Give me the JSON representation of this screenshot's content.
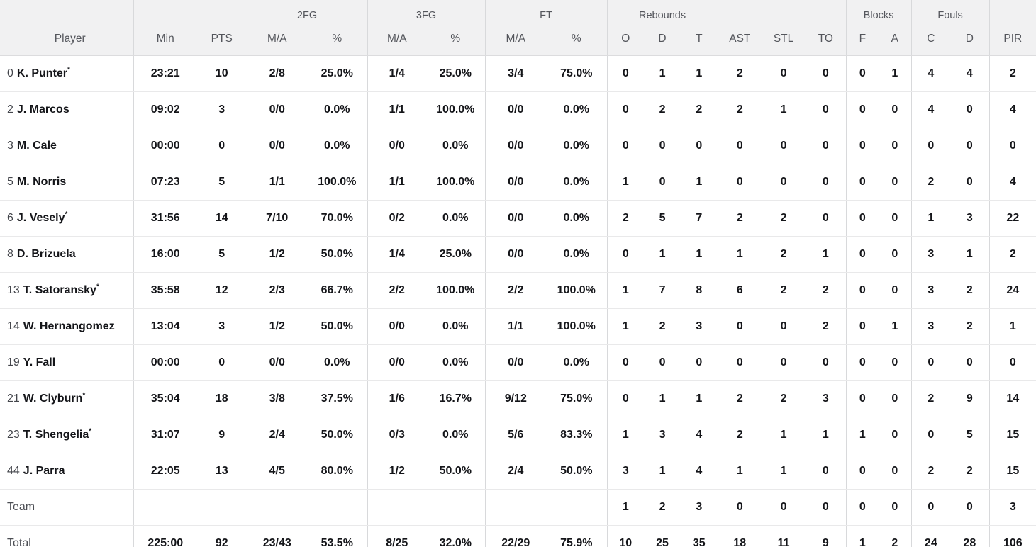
{
  "table": {
    "groups": {
      "fg2": "2FG",
      "fg3": "3FG",
      "ft": "FT",
      "rebounds": "Rebounds",
      "blocks": "Blocks",
      "fouls": "Fouls"
    },
    "columns": {
      "player": "Player",
      "min": "Min",
      "pts": "PTS",
      "fg2_ma": "M/A",
      "fg2_pct": "%",
      "fg3_ma": "M/A",
      "fg3_pct": "%",
      "ft_ma": "M/A",
      "ft_pct": "%",
      "reb_o": "O",
      "reb_d": "D",
      "reb_t": "T",
      "ast": "AST",
      "stl": "STL",
      "to": "TO",
      "blk_f": "F",
      "blk_a": "A",
      "foul_c": "C",
      "foul_d": "D",
      "pir": "PIR"
    },
    "rows": [
      {
        "type": "player",
        "number": "0",
        "name": "K. Punter",
        "starter": true,
        "stats": [
          "23:21",
          "10",
          "2/8",
          "25.0%",
          "1/4",
          "25.0%",
          "3/4",
          "75.0%",
          "0",
          "1",
          "1",
          "2",
          "0",
          "0",
          "0",
          "1",
          "4",
          "4",
          "2"
        ]
      },
      {
        "type": "player",
        "number": "2",
        "name": "J. Marcos",
        "starter": false,
        "stats": [
          "09:02",
          "3",
          "0/0",
          "0.0%",
          "1/1",
          "100.0%",
          "0/0",
          "0.0%",
          "0",
          "2",
          "2",
          "2",
          "1",
          "0",
          "0",
          "0",
          "4",
          "0",
          "4"
        ]
      },
      {
        "type": "player",
        "number": "3",
        "name": "M. Cale",
        "starter": false,
        "stats": [
          "00:00",
          "0",
          "0/0",
          "0.0%",
          "0/0",
          "0.0%",
          "0/0",
          "0.0%",
          "0",
          "0",
          "0",
          "0",
          "0",
          "0",
          "0",
          "0",
          "0",
          "0",
          "0"
        ]
      },
      {
        "type": "player",
        "number": "5",
        "name": "M. Norris",
        "starter": false,
        "stats": [
          "07:23",
          "5",
          "1/1",
          "100.0%",
          "1/1",
          "100.0%",
          "0/0",
          "0.0%",
          "1",
          "0",
          "1",
          "0",
          "0",
          "0",
          "0",
          "0",
          "2",
          "0",
          "4"
        ]
      },
      {
        "type": "player",
        "number": "6",
        "name": "J. Vesely",
        "starter": true,
        "stats": [
          "31:56",
          "14",
          "7/10",
          "70.0%",
          "0/2",
          "0.0%",
          "0/0",
          "0.0%",
          "2",
          "5",
          "7",
          "2",
          "2",
          "0",
          "0",
          "0",
          "1",
          "3",
          "22"
        ]
      },
      {
        "type": "player",
        "number": "8",
        "name": "D. Brizuela",
        "starter": false,
        "stats": [
          "16:00",
          "5",
          "1/2",
          "50.0%",
          "1/4",
          "25.0%",
          "0/0",
          "0.0%",
          "0",
          "1",
          "1",
          "1",
          "2",
          "1",
          "0",
          "0",
          "3",
          "1",
          "2"
        ]
      },
      {
        "type": "player",
        "number": "13",
        "name": "T. Satoransky",
        "starter": true,
        "stats": [
          "35:58",
          "12",
          "2/3",
          "66.7%",
          "2/2",
          "100.0%",
          "2/2",
          "100.0%",
          "1",
          "7",
          "8",
          "6",
          "2",
          "2",
          "0",
          "0",
          "3",
          "2",
          "24"
        ]
      },
      {
        "type": "player",
        "number": "14",
        "name": "W. Hernangomez",
        "starter": false,
        "stats": [
          "13:04",
          "3",
          "1/2",
          "50.0%",
          "0/0",
          "0.0%",
          "1/1",
          "100.0%",
          "1",
          "2",
          "3",
          "0",
          "0",
          "2",
          "0",
          "1",
          "3",
          "2",
          "1"
        ]
      },
      {
        "type": "player",
        "number": "19",
        "name": "Y. Fall",
        "starter": false,
        "stats": [
          "00:00",
          "0",
          "0/0",
          "0.0%",
          "0/0",
          "0.0%",
          "0/0",
          "0.0%",
          "0",
          "0",
          "0",
          "0",
          "0",
          "0",
          "0",
          "0",
          "0",
          "0",
          "0"
        ]
      },
      {
        "type": "player",
        "number": "21",
        "name": "W. Clyburn",
        "starter": true,
        "stats": [
          "35:04",
          "18",
          "3/8",
          "37.5%",
          "1/6",
          "16.7%",
          "9/12",
          "75.0%",
          "0",
          "1",
          "1",
          "2",
          "2",
          "3",
          "0",
          "0",
          "2",
          "9",
          "14"
        ]
      },
      {
        "type": "player",
        "number": "23",
        "name": "T. Shengelia",
        "starter": true,
        "stats": [
          "31:07",
          "9",
          "2/4",
          "50.0%",
          "0/3",
          "0.0%",
          "5/6",
          "83.3%",
          "1",
          "3",
          "4",
          "2",
          "1",
          "1",
          "1",
          "0",
          "0",
          "5",
          "15"
        ]
      },
      {
        "type": "player",
        "number": "44",
        "name": "J. Parra",
        "starter": false,
        "stats": [
          "22:05",
          "13",
          "4/5",
          "80.0%",
          "1/2",
          "50.0%",
          "2/4",
          "50.0%",
          "3",
          "1",
          "4",
          "1",
          "1",
          "0",
          "0",
          "0",
          "2",
          "2",
          "15"
        ]
      },
      {
        "type": "team",
        "label": "Team",
        "stats": [
          "",
          "",
          "",
          "",
          "",
          "",
          "",
          "",
          "1",
          "2",
          "3",
          "0",
          "0",
          "0",
          "0",
          "0",
          "0",
          "0",
          "3"
        ]
      },
      {
        "type": "total",
        "label": "Total",
        "stats": [
          "225:00",
          "92",
          "23/43",
          "53.5%",
          "8/25",
          "32.0%",
          "22/29",
          "75.9%",
          "10",
          "25",
          "35",
          "18",
          "11",
          "9",
          "1",
          "2",
          "24",
          "28",
          "106"
        ]
      }
    ],
    "starter_marker": "*"
  },
  "colors": {
    "header_bg": "#f1f1f2",
    "header_text": "#54565c",
    "body_text": "#141519",
    "muted_text": "#4c4e54",
    "group_border": "#d8d9db",
    "row_border": "#e9e9ea"
  }
}
